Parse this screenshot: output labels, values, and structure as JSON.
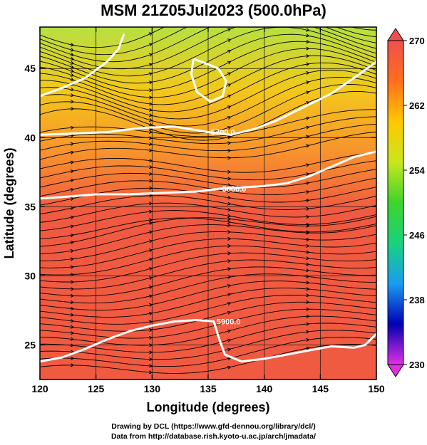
{
  "chart_data": {
    "type": "heatmap",
    "title": "MSM 21Z05Jul2023 (500.0hPa)",
    "xlabel": "Longitude (degrees)",
    "ylabel": "Latitude  (degrees)",
    "xlim": [
      120,
      150
    ],
    "ylim": [
      22.5,
      48
    ],
    "x_ticks": [
      120,
      125,
      130,
      135,
      140,
      145,
      150
    ],
    "y_ticks": [
      25,
      30,
      35,
      40,
      45
    ],
    "colorbar": {
      "range": [
        230,
        270
      ],
      "ticks": [
        230,
        238,
        246,
        254,
        262,
        270
      ],
      "colors": [
        "#e22ee2",
        "#0000b4",
        "#1a9cf2",
        "#19d27d",
        "#3ed42c",
        "#c8e61e",
        "#ffc800",
        "#ff6e1e",
        "#f0504b"
      ]
    },
    "field_colors": {
      "north": "#b8e040",
      "mid_north": "#f3c81a",
      "mid": "#f7912d",
      "south": "#f05a41"
    },
    "height_contours": [
      {
        "label": "5700.0",
        "points": [
          [
            120,
            40.2
          ],
          [
            123,
            40.3
          ],
          [
            126,
            40.4
          ],
          [
            129,
            40.7
          ],
          [
            132,
            40.8
          ],
          [
            135,
            40.4
          ],
          [
            137,
            40.2
          ],
          [
            139,
            40.6
          ],
          [
            141,
            41.2
          ],
          [
            143,
            42.0
          ],
          [
            146,
            43.2
          ],
          [
            148.5,
            44.6
          ],
          [
            150,
            45.5
          ]
        ]
      },
      {
        "label": "5800.0",
        "points": [
          [
            120,
            35.6
          ],
          [
            122,
            35.7
          ],
          [
            125,
            35.9
          ],
          [
            128,
            35.9
          ],
          [
            131,
            36.0
          ],
          [
            134,
            36.1
          ],
          [
            136,
            36.3
          ],
          [
            138,
            36.4
          ],
          [
            140,
            36.5
          ],
          [
            142,
            36.7
          ],
          [
            144,
            37.2
          ],
          [
            146,
            37.9
          ],
          [
            148,
            38.6
          ],
          [
            150,
            39.0
          ]
        ]
      },
      {
        "label": "5900.0",
        "points": [
          [
            120,
            23.8
          ],
          [
            122,
            24.1
          ],
          [
            124,
            24.7
          ],
          [
            126,
            25.4
          ],
          [
            128,
            26.0
          ],
          [
            130,
            26.4
          ],
          [
            132,
            26.7
          ],
          [
            134,
            26.8
          ],
          [
            135.5,
            26.7
          ],
          [
            136,
            25.4
          ],
          [
            136.5,
            24.3
          ],
          [
            138,
            23.8
          ],
          [
            140,
            24.0
          ],
          [
            142,
            24.3
          ],
          [
            144,
            24.6
          ],
          [
            146,
            24.9
          ],
          [
            148,
            24.8
          ],
          [
            149,
            25.0
          ],
          [
            150,
            25.8
          ]
        ]
      },
      {
        "label": "",
        "points": [
          [
            120,
            43.0
          ],
          [
            122,
            43.6
          ],
          [
            124,
            44.3
          ],
          [
            126,
            45.5
          ],
          [
            127,
            46.4
          ],
          [
            127.5,
            47.5
          ]
        ]
      },
      {
        "label": "",
        "points": [
          [
            133.7,
            45.7
          ],
          [
            133.5,
            44.6
          ],
          [
            134.0,
            43.3
          ],
          [
            135.2,
            42.6
          ],
          [
            136.3,
            43.0
          ],
          [
            136.6,
            44.1
          ],
          [
            135.9,
            45.0
          ],
          [
            134.7,
            45.4
          ],
          [
            133.7,
            45.7
          ]
        ]
      }
    ],
    "stream_direction": "west-to-east",
    "grid": true
  },
  "credits": {
    "line1": "Drawing by DCL (https://www.gfd-dennou.org/library/dcl/)",
    "line2": "Data from http://database.rish.kyoto-u.ac.jp/arch/jmadata/"
  }
}
